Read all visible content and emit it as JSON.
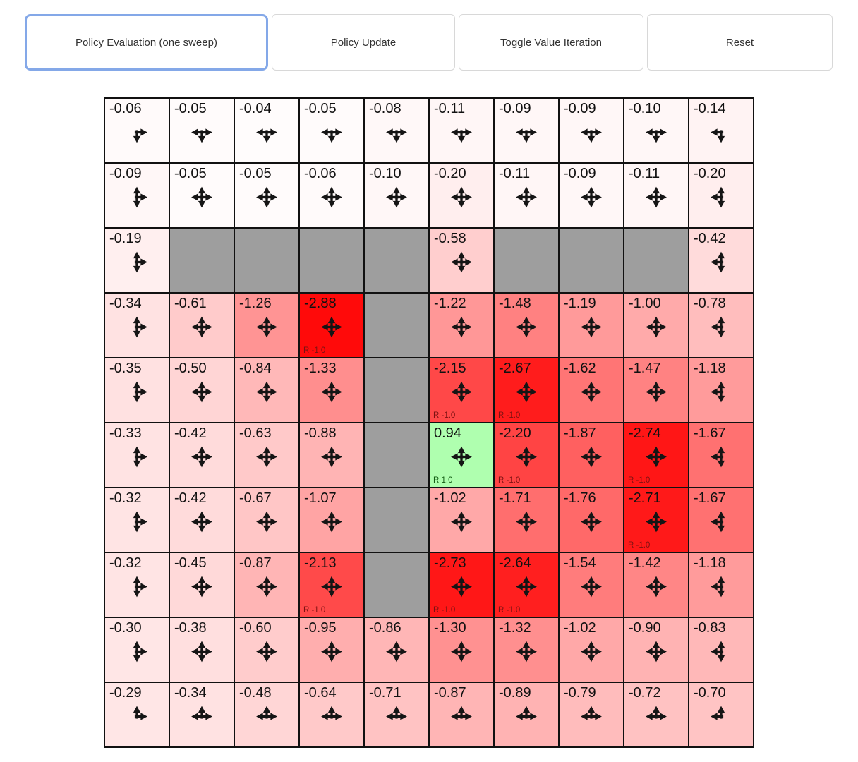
{
  "toolbar": {
    "buttons": [
      {
        "label": "Policy Evaluation (one sweep)",
        "active": true
      },
      {
        "label": "Policy Update",
        "active": false
      },
      {
        "label": "Toggle Value Iteration",
        "active": false
      },
      {
        "label": "Reset",
        "active": false
      }
    ]
  },
  "colors": {
    "active_button_border": "#84a8e8",
    "button_border": "#d8d8d8",
    "wall": "#9e9e9e",
    "grid_line": "#111111",
    "arrow": "#151515",
    "reward_negative_text": "#7c1212",
    "reward_positive_text": "#135c13",
    "negative_base": "#ff0000",
    "positive_base": "#00ff00"
  },
  "grid": {
    "rows": 10,
    "cols": 10,
    "cells": [
      [
        {
          "v": "-0.06",
          "d": "dr"
        },
        {
          "v": "-0.05",
          "d": "ldr"
        },
        {
          "v": "-0.04",
          "d": "ldr"
        },
        {
          "v": "-0.05",
          "d": "ldr"
        },
        {
          "v": "-0.08",
          "d": "ldr"
        },
        {
          "v": "-0.11",
          "d": "ldr"
        },
        {
          "v": "-0.09",
          "d": "ldr"
        },
        {
          "v": "-0.09",
          "d": "ldr"
        },
        {
          "v": "-0.10",
          "d": "ldr"
        },
        {
          "v": "-0.14",
          "d": "ld"
        }
      ],
      [
        {
          "v": "-0.09",
          "d": "udr"
        },
        {
          "v": "-0.05",
          "d": "udlr"
        },
        {
          "v": "-0.05",
          "d": "udlr"
        },
        {
          "v": "-0.06",
          "d": "udlr"
        },
        {
          "v": "-0.10",
          "d": "udlr"
        },
        {
          "v": "-0.20",
          "d": "udlr"
        },
        {
          "v": "-0.11",
          "d": "udlr"
        },
        {
          "v": "-0.09",
          "d": "udlr"
        },
        {
          "v": "-0.11",
          "d": "udlr"
        },
        {
          "v": "-0.20",
          "d": "udl"
        }
      ],
      [
        {
          "v": "-0.19",
          "d": "udr"
        },
        {
          "w": true
        },
        {
          "w": true
        },
        {
          "w": true
        },
        {
          "w": true
        },
        {
          "v": "-0.58",
          "d": "udlr"
        },
        {
          "w": true
        },
        {
          "w": true
        },
        {
          "w": true
        },
        {
          "v": "-0.42",
          "d": "udl"
        }
      ],
      [
        {
          "v": "-0.34",
          "d": "udr"
        },
        {
          "v": "-0.61",
          "d": "udlr"
        },
        {
          "v": "-1.26",
          "d": "udlr"
        },
        {
          "v": "-2.88",
          "d": "udlr",
          "r": "R -1.0"
        },
        {
          "w": true
        },
        {
          "v": "-1.22",
          "d": "udlr"
        },
        {
          "v": "-1.48",
          "d": "udlr"
        },
        {
          "v": "-1.19",
          "d": "udlr"
        },
        {
          "v": "-1.00",
          "d": "udlr"
        },
        {
          "v": "-0.78",
          "d": "udl"
        }
      ],
      [
        {
          "v": "-0.35",
          "d": "udr"
        },
        {
          "v": "-0.50",
          "d": "udlr"
        },
        {
          "v": "-0.84",
          "d": "udlr"
        },
        {
          "v": "-1.33",
          "d": "udlr"
        },
        {
          "w": true
        },
        {
          "v": "-2.15",
          "d": "udlr",
          "r": "R -1.0"
        },
        {
          "v": "-2.67",
          "d": "udlr",
          "r": "R -1.0"
        },
        {
          "v": "-1.62",
          "d": "udlr"
        },
        {
          "v": "-1.47",
          "d": "udlr"
        },
        {
          "v": "-1.18",
          "d": "udl"
        }
      ],
      [
        {
          "v": "-0.33",
          "d": "udr"
        },
        {
          "v": "-0.42",
          "d": "udlr"
        },
        {
          "v": "-0.63",
          "d": "udlr"
        },
        {
          "v": "-0.88",
          "d": "udlr"
        },
        {
          "w": true
        },
        {
          "v": "0.94",
          "d": "udlr",
          "r": "R 1.0"
        },
        {
          "v": "-2.20",
          "d": "udlr",
          "r": "R -1.0"
        },
        {
          "v": "-1.87",
          "d": "udlr"
        },
        {
          "v": "-2.74",
          "d": "udlr",
          "r": "R -1.0"
        },
        {
          "v": "-1.67",
          "d": "udl"
        }
      ],
      [
        {
          "v": "-0.32",
          "d": "udr"
        },
        {
          "v": "-0.42",
          "d": "udlr"
        },
        {
          "v": "-0.67",
          "d": "udlr"
        },
        {
          "v": "-1.07",
          "d": "udlr"
        },
        {
          "w": true
        },
        {
          "v": "-1.02",
          "d": "udlr"
        },
        {
          "v": "-1.71",
          "d": "udlr"
        },
        {
          "v": "-1.76",
          "d": "udlr"
        },
        {
          "v": "-2.71",
          "d": "udlr",
          "r": "R -1.0"
        },
        {
          "v": "-1.67",
          "d": "udl"
        }
      ],
      [
        {
          "v": "-0.32",
          "d": "udr"
        },
        {
          "v": "-0.45",
          "d": "udlr"
        },
        {
          "v": "-0.87",
          "d": "udlr"
        },
        {
          "v": "-2.13",
          "d": "udlr",
          "r": "R -1.0"
        },
        {
          "w": true
        },
        {
          "v": "-2.73",
          "d": "udlr",
          "r": "R -1.0"
        },
        {
          "v": "-2.64",
          "d": "udlr",
          "r": "R -1.0"
        },
        {
          "v": "-1.54",
          "d": "udlr"
        },
        {
          "v": "-1.42",
          "d": "udlr"
        },
        {
          "v": "-1.18",
          "d": "udl"
        }
      ],
      [
        {
          "v": "-0.30",
          "d": "udr"
        },
        {
          "v": "-0.38",
          "d": "udlr"
        },
        {
          "v": "-0.60",
          "d": "udlr"
        },
        {
          "v": "-0.95",
          "d": "udlr"
        },
        {
          "v": "-0.86",
          "d": "udlr"
        },
        {
          "v": "-1.30",
          "d": "udlr"
        },
        {
          "v": "-1.32",
          "d": "udlr"
        },
        {
          "v": "-1.02",
          "d": "udlr"
        },
        {
          "v": "-0.90",
          "d": "udlr"
        },
        {
          "v": "-0.83",
          "d": "udl"
        }
      ],
      [
        {
          "v": "-0.29",
          "d": "ur"
        },
        {
          "v": "-0.34",
          "d": "ulr"
        },
        {
          "v": "-0.48",
          "d": "ulr"
        },
        {
          "v": "-0.64",
          "d": "ulr"
        },
        {
          "v": "-0.71",
          "d": "ulr"
        },
        {
          "v": "-0.87",
          "d": "ulr"
        },
        {
          "v": "-0.89",
          "d": "ulr"
        },
        {
          "v": "-0.79",
          "d": "ulr"
        },
        {
          "v": "-0.72",
          "d": "ulr"
        },
        {
          "v": "-0.70",
          "d": "ul"
        }
      ]
    ]
  }
}
